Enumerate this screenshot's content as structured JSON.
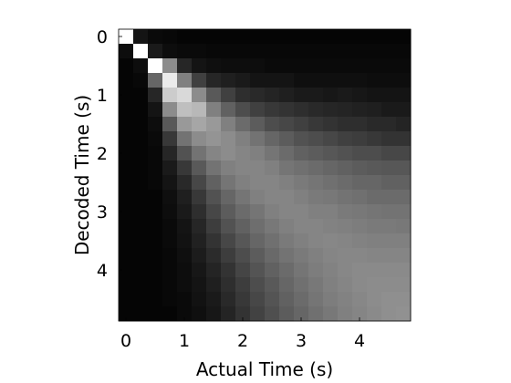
{
  "chart_data": {
    "type": "heatmap",
    "title": "",
    "xlabel": "Actual Time (s)",
    "ylabel": "Decoded Time (s)",
    "xlim": [
      -0.125,
      4.875
    ],
    "ylim": [
      -0.125,
      4.875
    ],
    "y_direction": "top-down",
    "colormap": "gray",
    "grid": false,
    "x_ticks": [
      0,
      1,
      2,
      3,
      4
    ],
    "y_ticks": [
      0,
      1,
      2,
      3,
      4
    ],
    "x_tick_labels": [
      "0",
      "1",
      "2",
      "3",
      "4"
    ],
    "y_tick_labels": [
      "0",
      "1",
      "2",
      "3",
      "4"
    ],
    "cell_size_s": 0.25,
    "rows": 20,
    "cols": 20,
    "values_description": "rows = decoded time bins (0 to 4.75 s, top to bottom), cols = actual time bins (0 to 4.75 s), value = normalized intensity 0-1",
    "values": [
      [
        1.0,
        0.08,
        0.04,
        0.03,
        0.02,
        0.02,
        0.02,
        0.02,
        0.02,
        0.02,
        0.02,
        0.02,
        0.02,
        0.02,
        0.02,
        0.02,
        0.02,
        0.02,
        0.02,
        0.02
      ],
      [
        0.05,
        1.0,
        0.1,
        0.05,
        0.04,
        0.04,
        0.03,
        0.03,
        0.03,
        0.03,
        0.03,
        0.03,
        0.03,
        0.03,
        0.03,
        0.03,
        0.03,
        0.03,
        0.03,
        0.03
      ],
      [
        0.02,
        0.05,
        1.0,
        0.55,
        0.15,
        0.08,
        0.06,
        0.05,
        0.05,
        0.05,
        0.04,
        0.04,
        0.04,
        0.04,
        0.04,
        0.04,
        0.04,
        0.04,
        0.04,
        0.04
      ],
      [
        0.02,
        0.03,
        0.4,
        0.92,
        0.5,
        0.25,
        0.15,
        0.12,
        0.1,
        0.08,
        0.08,
        0.08,
        0.06,
        0.06,
        0.06,
        0.06,
        0.06,
        0.05,
        0.05,
        0.05
      ],
      [
        0.02,
        0.02,
        0.15,
        0.8,
        0.85,
        0.55,
        0.35,
        0.25,
        0.18,
        0.16,
        0.14,
        0.12,
        0.1,
        0.1,
        0.09,
        0.1,
        0.09,
        0.08,
        0.08,
        0.08
      ],
      [
        0.02,
        0.02,
        0.08,
        0.55,
        0.75,
        0.72,
        0.5,
        0.38,
        0.3,
        0.25,
        0.22,
        0.2,
        0.18,
        0.16,
        0.15,
        0.14,
        0.13,
        0.12,
        0.1,
        0.1
      ],
      [
        0.02,
        0.02,
        0.05,
        0.35,
        0.6,
        0.65,
        0.6,
        0.5,
        0.42,
        0.36,
        0.3,
        0.28,
        0.25,
        0.22,
        0.2,
        0.18,
        0.18,
        0.16,
        0.16,
        0.14
      ],
      [
        0.02,
        0.02,
        0.04,
        0.22,
        0.45,
        0.55,
        0.58,
        0.55,
        0.5,
        0.45,
        0.4,
        0.36,
        0.32,
        0.3,
        0.28,
        0.25,
        0.24,
        0.22,
        0.2,
        0.2
      ],
      [
        0.02,
        0.02,
        0.03,
        0.15,
        0.32,
        0.45,
        0.52,
        0.55,
        0.52,
        0.5,
        0.46,
        0.42,
        0.38,
        0.36,
        0.34,
        0.32,
        0.3,
        0.3,
        0.28,
        0.28
      ],
      [
        0.02,
        0.02,
        0.03,
        0.1,
        0.22,
        0.35,
        0.45,
        0.5,
        0.52,
        0.52,
        0.5,
        0.46,
        0.44,
        0.42,
        0.4,
        0.38,
        0.36,
        0.35,
        0.34,
        0.34
      ],
      [
        0.02,
        0.02,
        0.03,
        0.08,
        0.16,
        0.28,
        0.38,
        0.46,
        0.5,
        0.52,
        0.52,
        0.5,
        0.48,
        0.46,
        0.44,
        0.42,
        0.4,
        0.4,
        0.38,
        0.38
      ],
      [
        0.02,
        0.02,
        0.02,
        0.06,
        0.12,
        0.22,
        0.32,
        0.4,
        0.46,
        0.5,
        0.52,
        0.52,
        0.5,
        0.48,
        0.47,
        0.45,
        0.44,
        0.42,
        0.42,
        0.42
      ],
      [
        0.02,
        0.02,
        0.02,
        0.05,
        0.1,
        0.18,
        0.28,
        0.36,
        0.42,
        0.46,
        0.5,
        0.52,
        0.52,
        0.5,
        0.5,
        0.48,
        0.47,
        0.46,
        0.45,
        0.45
      ],
      [
        0.02,
        0.02,
        0.02,
        0.04,
        0.08,
        0.15,
        0.24,
        0.32,
        0.38,
        0.43,
        0.47,
        0.5,
        0.52,
        0.52,
        0.51,
        0.5,
        0.49,
        0.48,
        0.48,
        0.47
      ],
      [
        0.02,
        0.02,
        0.02,
        0.04,
        0.07,
        0.13,
        0.2,
        0.28,
        0.34,
        0.4,
        0.44,
        0.48,
        0.5,
        0.52,
        0.53,
        0.52,
        0.51,
        0.5,
        0.5,
        0.5
      ],
      [
        0.02,
        0.02,
        0.02,
        0.03,
        0.06,
        0.11,
        0.17,
        0.24,
        0.3,
        0.36,
        0.41,
        0.45,
        0.48,
        0.5,
        0.52,
        0.53,
        0.53,
        0.52,
        0.52,
        0.52
      ],
      [
        0.02,
        0.02,
        0.02,
        0.03,
        0.05,
        0.09,
        0.14,
        0.2,
        0.27,
        0.33,
        0.38,
        0.42,
        0.46,
        0.49,
        0.51,
        0.53,
        0.54,
        0.54,
        0.54,
        0.54
      ],
      [
        0.02,
        0.02,
        0.02,
        0.03,
        0.05,
        0.08,
        0.12,
        0.18,
        0.24,
        0.3,
        0.35,
        0.4,
        0.44,
        0.47,
        0.5,
        0.52,
        0.54,
        0.55,
        0.55,
        0.55
      ],
      [
        0.02,
        0.02,
        0.02,
        0.03,
        0.04,
        0.07,
        0.1,
        0.16,
        0.22,
        0.28,
        0.33,
        0.38,
        0.42,
        0.46,
        0.49,
        0.51,
        0.53,
        0.55,
        0.56,
        0.56
      ],
      [
        0.02,
        0.02,
        0.02,
        0.02,
        0.04,
        0.06,
        0.09,
        0.14,
        0.2,
        0.26,
        0.31,
        0.36,
        0.4,
        0.44,
        0.47,
        0.5,
        0.52,
        0.54,
        0.56,
        0.57
      ]
    ]
  }
}
